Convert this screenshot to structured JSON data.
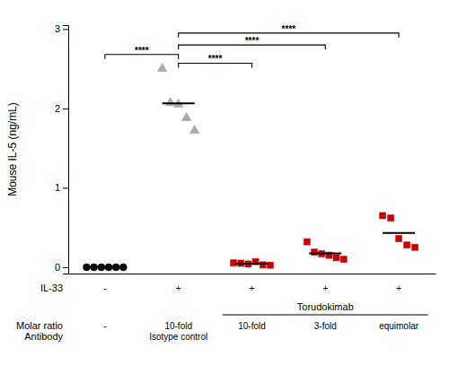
{
  "chart_data": {
    "type": "strip",
    "ylabel": "Mouse IL-5 (ng/mL)",
    "ylim": [
      -0.08,
      3.05
    ],
    "yticks": [
      0,
      1,
      2,
      3
    ],
    "series": [
      {
        "color": "black",
        "marker": "circle",
        "values": [
          0.0,
          0.0,
          0.0,
          0.0,
          0.0,
          0.0
        ],
        "mean": 0.0
      },
      {
        "color": "#aaaaaa",
        "marker": "triangle",
        "values": [
          2.5,
          2.07,
          2.05,
          1.88,
          1.72
        ],
        "mean": 2.064
      },
      {
        "color": "#cc0000",
        "marker": "square",
        "values": [
          0.055,
          0.05,
          0.04,
          0.07,
          0.03,
          0.025
        ],
        "mean": 0.045
      },
      {
        "color": "#cc0000",
        "marker": "square",
        "values": [
          0.32,
          0.19,
          0.17,
          0.15,
          0.12,
          0.1
        ],
        "mean": 0.175
      },
      {
        "color": "#cc0000",
        "marker": "square",
        "values": [
          0.65,
          0.62,
          0.36,
          0.28,
          0.25
        ],
        "mean": 0.432
      }
    ],
    "significance": [
      {
        "from": 0,
        "to": 1,
        "y": 2.68,
        "label": "****"
      },
      {
        "from": 1,
        "to": 2,
        "y": 2.57,
        "label": "****"
      },
      {
        "from": 1,
        "to": 3,
        "y": 2.8,
        "label": "****"
      },
      {
        "from": 1,
        "to": 4,
        "y": 2.95,
        "label": "****"
      }
    ],
    "rows": [
      {
        "label": "IL-33",
        "values": [
          "-",
          "+",
          "+",
          "+",
          "+"
        ]
      },
      {
        "label": "Molar ratio\nAntibody",
        "values": [
          "-",
          "10-fold\nIsotype control",
          "10-fold",
          "3-fold",
          "equimolar"
        ]
      }
    ],
    "bracket": {
      "label": "Torudokimab",
      "from": 2,
      "to": 4
    }
  }
}
